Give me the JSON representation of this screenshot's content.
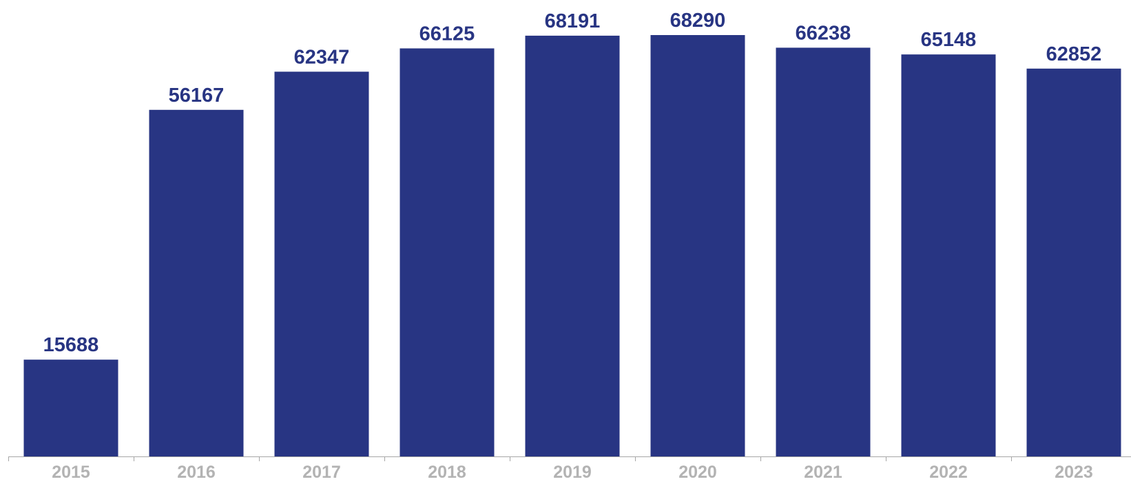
{
  "chart_data": {
    "type": "bar",
    "title": "",
    "xlabel": "",
    "ylabel": "",
    "categories": [
      "2015",
      "2016",
      "2017",
      "2018",
      "2019",
      "2020",
      "2021",
      "2022",
      "2023"
    ],
    "values": [
      15688,
      56167,
      62347,
      66125,
      68191,
      68290,
      66238,
      65148,
      62852
    ],
    "ylim": [
      0,
      68290
    ],
    "grid": false,
    "legend": "none",
    "data_labels": true,
    "colors": {
      "bar": "#283583",
      "value_label": "#283583",
      "tick_label": "#b3b3b3",
      "axis": "#a6a6a6"
    }
  }
}
